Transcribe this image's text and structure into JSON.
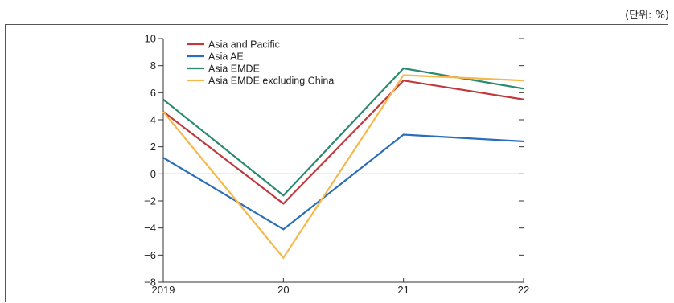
{
  "unit_label": "(단위: %)",
  "chart_data": {
    "type": "line",
    "x": [
      "2019",
      "20",
      "21",
      "22"
    ],
    "ylim": [
      -8,
      10
    ],
    "yticks": [
      10,
      8,
      6,
      4,
      2,
      0,
      -2,
      -4,
      -6,
      -8
    ],
    "ytick_labels": [
      "10",
      "8",
      "6",
      "4",
      "2",
      "0",
      "−2",
      "−4",
      "−6",
      "−8"
    ],
    "legend_position": "top-left",
    "series": [
      {
        "name": "Asia and Pacific",
        "color": "#c0393b",
        "values": [
          4.6,
          -2.2,
          6.9,
          5.5
        ]
      },
      {
        "name": "Asia AE",
        "color": "#2a6ebb",
        "values": [
          1.2,
          -4.1,
          2.9,
          2.4
        ]
      },
      {
        "name": "Asia EMDE",
        "color": "#2a8a6e",
        "values": [
          5.5,
          -1.6,
          7.8,
          6.3
        ]
      },
      {
        "name": "Asia EMDE excluding China",
        "color": "#f7b84a",
        "values": [
          4.6,
          -6.2,
          7.3,
          6.9
        ]
      }
    ]
  }
}
